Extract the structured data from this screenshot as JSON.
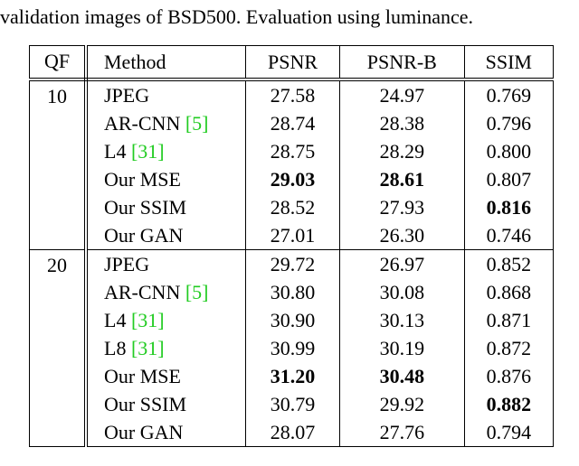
{
  "caption": "validation images of BSD500. Evaluation using luminance.",
  "table": {
    "header": [
      "QF",
      "Method",
      "PSNR",
      "PSNR-B",
      "SSIM"
    ],
    "groups": [
      {
        "qf": "10",
        "rows": [
          {
            "method": "JPEG",
            "psnr": "27.58",
            "psnrb": "24.97",
            "ssim": "0.769"
          },
          {
            "method": "AR-CNN",
            "cite": "[5]",
            "psnr": "28.74",
            "psnrb": "28.38",
            "ssim": "0.796"
          },
          {
            "method": "L4",
            "cite": "[31]",
            "psnr": "28.75",
            "psnrb": "28.29",
            "ssim": "0.800"
          },
          {
            "method": "Our MSE",
            "psnr": "29.03",
            "psnrb": "28.61",
            "ssim": "0.807",
            "bold": [
              "psnr",
              "psnrb"
            ]
          },
          {
            "method": "Our SSIM",
            "psnr": "28.52",
            "psnrb": "27.93",
            "ssim": "0.816",
            "bold": [
              "ssim"
            ]
          },
          {
            "method": "Our GAN",
            "psnr": "27.01",
            "psnrb": "26.30",
            "ssim": "0.746"
          }
        ]
      },
      {
        "qf": "20",
        "rows": [
          {
            "method": "JPEG",
            "psnr": "29.72",
            "psnrb": "26.97",
            "ssim": "0.852"
          },
          {
            "method": "AR-CNN",
            "cite": "[5]",
            "psnr": "30.80",
            "psnrb": "30.08",
            "ssim": "0.868"
          },
          {
            "method": "L4",
            "cite": "[31]",
            "psnr": "30.90",
            "psnrb": "30.13",
            "ssim": "0.871"
          },
          {
            "method": "L8",
            "cite": "[31]",
            "psnr": "30.99",
            "psnrb": "30.19",
            "ssim": "0.872"
          },
          {
            "method": "Our MSE",
            "psnr": "31.20",
            "psnrb": "30.48",
            "ssim": "0.876",
            "bold": [
              "psnr",
              "psnrb"
            ]
          },
          {
            "method": "Our SSIM",
            "psnr": "30.79",
            "psnrb": "29.92",
            "ssim": "0.882",
            "bold": [
              "ssim"
            ]
          },
          {
            "method": "Our GAN",
            "psnr": "28.07",
            "psnrb": "27.76",
            "ssim": "0.794"
          }
        ]
      }
    ],
    "cite_color": "#22cc22"
  }
}
